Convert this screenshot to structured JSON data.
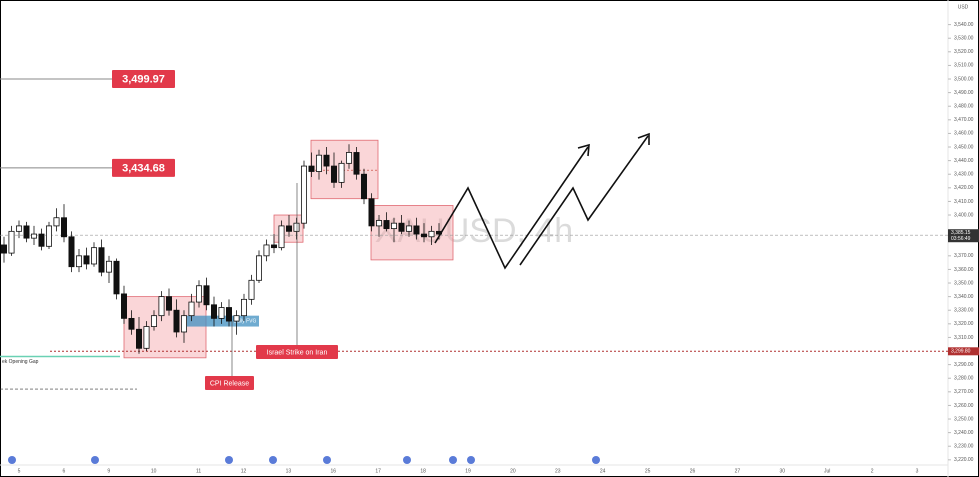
{
  "chart_data": {
    "type": "candlestick",
    "watermark": "XAUUSD, 4h",
    "currency": "USD",
    "ylim": [
      3216.2,
      3558.1
    ],
    "yticks": [
      {
        "value": 3220,
        "label": "3,220.00"
      },
      {
        "value": 3230,
        "label": "3,230.00"
      },
      {
        "value": 3240,
        "label": "3,240.00"
      },
      {
        "value": 3250,
        "label": "3,250.00"
      },
      {
        "value": 3260,
        "label": "3,260.00"
      },
      {
        "value": 3270,
        "label": "3,270.00"
      },
      {
        "value": 3280,
        "label": "3,280.00"
      },
      {
        "value": 3290,
        "label": "3,290.00"
      },
      {
        "value": 3310,
        "label": "3,310.00"
      },
      {
        "value": 3320,
        "label": "3,320.00"
      },
      {
        "value": 3330,
        "label": "3,330.00"
      },
      {
        "value": 3340,
        "label": "3,340.00"
      },
      {
        "value": 3350,
        "label": "3,350.00"
      },
      {
        "value": 3360,
        "label": "3,360.00"
      },
      {
        "value": 3370,
        "label": "3,370.00"
      },
      {
        "value": 3400,
        "label": "3,400.00"
      },
      {
        "value": 3410,
        "label": "3,410.00"
      },
      {
        "value": 3420,
        "label": "3,420.00"
      },
      {
        "value": 3430,
        "label": "3,430.00"
      },
      {
        "value": 3440,
        "label": "3,440.00"
      },
      {
        "value": 3450,
        "label": "3,450.00"
      },
      {
        "value": 3460,
        "label": "3,460.00"
      },
      {
        "value": 3470,
        "label": "3,470.00"
      },
      {
        "value": 3480,
        "label": "3,480.00"
      },
      {
        "value": 3490,
        "label": "3,490.00"
      },
      {
        "value": 3500,
        "label": "3,500.00"
      },
      {
        "value": 3510,
        "label": "3,510.00"
      },
      {
        "value": 3520,
        "label": "3,520.00"
      },
      {
        "value": 3530,
        "label": "3,530.00"
      },
      {
        "value": 3540,
        "label": "3,540.00"
      }
    ],
    "categories": [
      "5",
      "6",
      "9",
      "10",
      "11",
      "12",
      "13",
      "16",
      "17",
      "18",
      "19",
      "20",
      "23",
      "24",
      "25",
      "26",
      "27",
      "30",
      "Jul",
      "2",
      "3"
    ],
    "ohlc": [
      [
        3378,
        3384,
        3365,
        3372
      ],
      [
        3372,
        3392,
        3370,
        3388
      ],
      [
        3388,
        3396,
        3383,
        3392
      ],
      [
        3392,
        3395,
        3380,
        3383
      ],
      [
        3383,
        3392,
        3378,
        3386
      ],
      [
        3386,
        3390,
        3374,
        3377
      ],
      [
        3377,
        3395,
        3375,
        3392
      ],
      [
        3392,
        3405,
        3388,
        3398
      ],
      [
        3398,
        3408,
        3380,
        3384
      ],
      [
        3384,
        3388,
        3358,
        3362
      ],
      [
        3362,
        3375,
        3358,
        3370
      ],
      [
        3370,
        3376,
        3360,
        3364
      ],
      [
        3364,
        3380,
        3362,
        3376
      ],
      [
        3376,
        3382,
        3355,
        3358
      ],
      [
        3358,
        3370,
        3350,
        3366
      ],
      [
        3366,
        3368,
        3338,
        3342
      ],
      [
        3342,
        3348,
        3320,
        3324
      ],
      [
        3324,
        3330,
        3312,
        3316
      ],
      [
        3316,
        3325,
        3298,
        3302
      ],
      [
        3302,
        3322,
        3300,
        3318
      ],
      [
        3318,
        3330,
        3315,
        3326
      ],
      [
        3326,
        3344,
        3322,
        3340
      ],
      [
        3340,
        3346,
        3326,
        3330
      ],
      [
        3330,
        3338,
        3310,
        3314
      ],
      [
        3314,
        3330,
        3306,
        3326
      ],
      [
        3326,
        3342,
        3322,
        3336
      ],
      [
        3336,
        3352,
        3332,
        3348
      ],
      [
        3348,
        3354,
        3330,
        3334
      ],
      [
        3334,
        3340,
        3318,
        3324
      ],
      [
        3324,
        3336,
        3320,
        3332
      ],
      [
        3332,
        3338,
        3318,
        3322
      ],
      [
        3322,
        3330,
        3312,
        3326
      ],
      [
        3326,
        3342,
        3322,
        3338
      ],
      [
        3338,
        3356,
        3334,
        3352
      ],
      [
        3352,
        3374,
        3350,
        3370
      ],
      [
        3370,
        3382,
        3366,
        3378
      ],
      [
        3378,
        3386,
        3372,
        3376
      ],
      [
        3376,
        3396,
        3374,
        3392
      ],
      [
        3392,
        3400,
        3384,
        3388
      ],
      [
        3388,
        3398,
        3382,
        3394
      ],
      [
        3394,
        3440,
        3390,
        3436
      ],
      [
        3436,
        3446,
        3428,
        3432
      ],
      [
        3432,
        3448,
        3426,
        3444
      ],
      [
        3444,
        3450,
        3430,
        3436
      ],
      [
        3436,
        3446,
        3420,
        3424
      ],
      [
        3424,
        3440,
        3420,
        3438
      ],
      [
        3438,
        3452,
        3434,
        3446
      ],
      [
        3446,
        3450,
        3426,
        3430
      ],
      [
        3430,
        3434,
        3408,
        3412
      ],
      [
        3412,
        3416,
        3388,
        3392
      ],
      [
        3392,
        3400,
        3384,
        3396
      ],
      [
        3396,
        3402,
        3388,
        3390
      ],
      [
        3390,
        3398,
        3380,
        3394
      ],
      [
        3394,
        3400,
        3386,
        3388
      ],
      [
        3388,
        3396,
        3384,
        3392
      ],
      [
        3392,
        3398,
        3382,
        3386
      ],
      [
        3386,
        3394,
        3380,
        3384
      ],
      [
        3384,
        3392,
        3378,
        3388
      ],
      [
        3388,
        3394,
        3382,
        3386
      ]
    ],
    "levels": [
      {
        "value": 3499.97,
        "label": "3,499.97"
      },
      {
        "value": 3434.68,
        "label": "3,434.68"
      }
    ],
    "current_price": {
      "value": 3385.15,
      "label": "3,385.15"
    },
    "countdown": "03:56:49",
    "red_level": {
      "value": 3299.8,
      "label": "3,299.80"
    },
    "dashed_level": 3272,
    "zones": [
      {
        "low": 3295,
        "high": 3340
      },
      {
        "low": 3380,
        "high": 3400
      },
      {
        "low": 3412,
        "high": 3455
      },
      {
        "low": 3367,
        "high": 3407
      }
    ],
    "fvg": {
      "low": 3318,
      "high": 3326,
      "label": "Daily FVG"
    },
    "opening_gap": {
      "value": 3296,
      "label": "ek Opening Gap"
    },
    "events": [
      {
        "label": "CPI Release"
      },
      {
        "label": "Israel Strike on Iran"
      }
    ]
  }
}
